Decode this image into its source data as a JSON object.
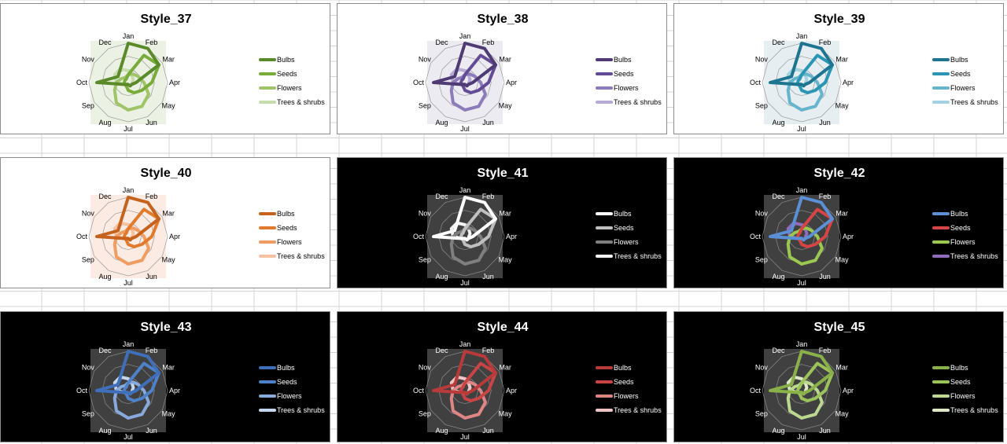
{
  "chart_data": [
    {
      "type": "radar",
      "title": "Style_37",
      "theme": "light",
      "plot_bg": "#ebf1e3",
      "colors": [
        "#5a8a2a",
        "#79ac3b",
        "#9fc46a",
        "#c6dcac"
      ]
    },
    {
      "type": "radar",
      "title": "Style_38",
      "theme": "light",
      "plot_bg": "#ecebf2",
      "colors": [
        "#4e3b73",
        "#634c94",
        "#8d7cba",
        "#b7abd5"
      ]
    },
    {
      "type": "radar",
      "title": "Style_39",
      "theme": "light",
      "plot_bg": "#e6eef2",
      "colors": [
        "#1e7590",
        "#2a96b3",
        "#66b5cc",
        "#a3d1df"
      ]
    },
    {
      "type": "radar",
      "title": "Style_40",
      "theme": "light",
      "plot_bg": "#fcebe2",
      "colors": [
        "#c4621e",
        "#e07a2f",
        "#f09d62",
        "#f5c1a1"
      ]
    },
    {
      "type": "radar",
      "title": "Style_41",
      "theme": "dark",
      "plot_bg": "#404040",
      "colors": [
        "#ffffff",
        "#bfbfbf",
        "#7f7f7f",
        "#f2f2f2"
      ]
    },
    {
      "type": "radar",
      "title": "Style_42",
      "theme": "dark",
      "plot_bg": "#404040",
      "colors": [
        "#5b8fd6",
        "#d64545",
        "#9bc850",
        "#8e6bbb"
      ]
    },
    {
      "type": "radar",
      "title": "Style_43",
      "theme": "dark",
      "plot_bg": "#404040",
      "colors": [
        "#3f6fb8",
        "#4f81c9",
        "#87a9dc",
        "#c5d5ee"
      ]
    },
    {
      "type": "radar",
      "title": "Style_44",
      "theme": "dark",
      "plot_bg": "#404040",
      "colors": [
        "#b83a3a",
        "#c94545",
        "#de8585",
        "#f0c4c4"
      ]
    },
    {
      "type": "radar",
      "title": "Style_45",
      "theme": "dark",
      "plot_bg": "#404040",
      "colors": [
        "#8ab04a",
        "#9bc35a",
        "#bcd890",
        "#dde9c6"
      ]
    }
  ],
  "shared": {
    "categories": [
      "Jan",
      "Feb",
      "Mar",
      "Apr",
      "May",
      "Jun",
      "Jul",
      "Aug",
      "Sep",
      "Oct",
      "Nov",
      "Dec"
    ],
    "series": [
      {
        "name": "Bulbs",
        "values": [
          1,
          1,
          0.9,
          0.2,
          0.1,
          0.1,
          0.05,
          0.05,
          0.1,
          0.8,
          0.3,
          0.4
        ]
      },
      {
        "name": "Seeds",
        "values": [
          0.2,
          0.8,
          0.9,
          0.6,
          0.4,
          0.3,
          0.2,
          0.1,
          0.1,
          0.1,
          0.1,
          0.1
        ]
      },
      {
        "name": "Flowers",
        "values": [
          0.2,
          0.25,
          0.3,
          0.4,
          0.6,
          0.7,
          0.7,
          0.6,
          0.4,
          0.3,
          0.2,
          0.15
        ]
      },
      {
        "name": "Trees & shrubs",
        "values": [
          0.3,
          0.2,
          0.15,
          0.1,
          0.1,
          0.1,
          0.05,
          0.1,
          0.1,
          0.3,
          0.4,
          0.4
        ]
      }
    ],
    "ylim": [
      0,
      1
    ],
    "grid": true,
    "legend_position": "right"
  }
}
